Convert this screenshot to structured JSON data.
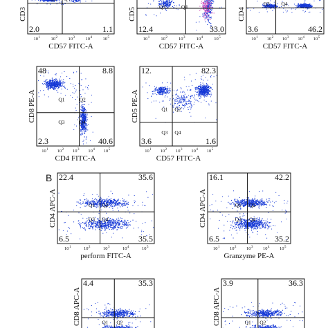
{
  "section_b_label": "B",
  "tick_labels": [
    "10",
    "10",
    "10",
    "10",
    "10"
  ],
  "tick_exponents": [
    "1",
    "2",
    "3",
    "4",
    "5"
  ],
  "panels": [
    {
      "id": "a1",
      "x": 40,
      "y": -8,
      "w": 125,
      "h": 57,
      "dot": "#1538d6",
      "ylabel": "CD3",
      "xlabel": "CD57 FITC-A",
      "tl": "",
      "tr": "",
      "bl": "2.0",
      "br": "1.1",
      "quads": [
        "Q3",
        "Q4"
      ],
      "qpos": [
        [
          0.26,
          0.16
        ],
        [
          0.42,
          0.16
        ]
      ],
      "dx": 0.4,
      "dy": 0.22,
      "clusters": [
        [
          0.25,
          0.12,
          0.12,
          0.05,
          260
        ],
        [
          0.55,
          0.14,
          0.08,
          0.05,
          40
        ]
      ]
    },
    {
      "id": "a2",
      "x": 198,
      "y": -8,
      "w": 128,
      "h": 57,
      "dot": "#1538d6",
      "ylabel": "CD5",
      "xlabel": "CD57 FITC-A",
      "tl": "",
      "tr": "",
      "bl": "12.4",
      "br": "33.0",
      "quads": [
        "Q3",
        "Q4"
      ],
      "qpos": [
        [
          0.25,
          0.36
        ],
        [
          0.5,
          0.36
        ]
      ],
      "dx": 0.55,
      "dy": 0.35,
      "clusters": [
        [
          0.32,
          0.22,
          0.1,
          0.16,
          160
        ],
        [
          0.8,
          0.35,
          0.06,
          0.38,
          220
        ]
      ],
      "pink": true
    },
    {
      "id": "a3",
      "x": 356,
      "y": -8,
      "w": 112,
      "h": 57,
      "dot": "#1538d6",
      "ylabel": "CD4",
      "xlabel": "CD57 FITC-A",
      "tl": "",
      "tr": "",
      "bl": "3.6",
      "br": "46.2",
      "quads": [
        "Q3",
        "Q4"
      ],
      "qpos": [
        [
          0.22,
          0.28
        ],
        [
          0.45,
          0.28
        ]
      ],
      "dx": 0.38,
      "dy": 0.34,
      "clusters": [
        [
          0.3,
          0.28,
          0.12,
          0.07,
          160
        ],
        [
          0.75,
          0.28,
          0.12,
          0.07,
          260
        ]
      ]
    },
    {
      "id": "a4",
      "x": 53,
      "y": 96,
      "w": 112,
      "h": 115,
      "dot": "#1538d6",
      "ylabel": "CD8 PE-A",
      "xlabel": "CD4 FITC-A",
      "tl": "48",
      "tr": "8.8",
      "bl": "2.3",
      "br": "40.6",
      "quads": [
        "Q1",
        "Q2",
        "Q3",
        "Q4"
      ],
      "qpos": [
        [
          0.28,
          0.44
        ],
        [
          0.55,
          0.44
        ],
        [
          0.28,
          0.72
        ],
        [
          0.55,
          0.72
        ]
      ],
      "dx": 0.55,
      "dy": 0.58,
      "clusters": [
        [
          0.22,
          0.22,
          0.14,
          0.07,
          420
        ],
        [
          0.6,
          0.68,
          0.05,
          0.22,
          380
        ]
      ]
    },
    {
      "id": "a5",
      "x": 202,
      "y": 96,
      "w": 112,
      "h": 115,
      "dot": "#1538d6",
      "ylabel": "CD5 PE-A",
      "xlabel": "CD57 FITC-A",
      "tl": "12.",
      "tr": "82.3",
      "bl": "3.6",
      "br": "1.6",
      "quads": [
        "Q1",
        "Q2",
        "Q3",
        "Q4"
      ],
      "qpos": [
        [
          0.28,
          0.56
        ],
        [
          0.45,
          0.56
        ],
        [
          0.28,
          0.85
        ],
        [
          0.45,
          0.85
        ]
      ],
      "dx": 0.42,
      "dy": 0.7,
      "clusters": [
        [
          0.28,
          0.3,
          0.12,
          0.06,
          180
        ],
        [
          0.82,
          0.3,
          0.1,
          0.08,
          420
        ],
        [
          0.55,
          0.42,
          0.2,
          0.15,
          140
        ]
      ]
    },
    {
      "id": "b1",
      "x": 83,
      "y": 250,
      "w": 140,
      "h": 102,
      "dot": "#1538d6",
      "ylabel": "CD4 APC-A",
      "xlabel": "perform FITC-A",
      "tl": "22.4",
      "tr": "35.6",
      "bl": "6.5",
      "br": "35.5",
      "quads": [
        "Q1",
        "Q2",
        "Q3",
        "Q4"
      ],
      "qpos": [
        [
          0.32,
          0.48
        ],
        [
          0.46,
          0.48
        ],
        [
          0.32,
          0.68
        ],
        [
          0.46,
          0.68
        ]
      ],
      "dx": 0.44,
      "dy": 0.55,
      "clusters": [
        [
          0.5,
          0.42,
          0.3,
          0.07,
          420
        ],
        [
          0.5,
          0.72,
          0.3,
          0.09,
          480
        ]
      ]
    },
    {
      "id": "b2",
      "x": 300,
      "y": 250,
      "w": 120,
      "h": 102,
      "dot": "#1538d6",
      "ylabel": "CD4 APC-A",
      "xlabel": "Granzyme PE-A",
      "tl": "16.1",
      "tr": "42.2",
      "bl": "6.5",
      "br": "35.2",
      "quads": [
        "Q1",
        "Q2",
        "Q3",
        "Q4"
      ],
      "qpos": [
        [
          0.33,
          0.48
        ],
        [
          0.5,
          0.48
        ],
        [
          0.33,
          0.68
        ],
        [
          0.5,
          0.68
        ]
      ],
      "dx": 0.48,
      "dy": 0.55,
      "clusters": [
        [
          0.52,
          0.42,
          0.26,
          0.07,
          400
        ],
        [
          0.52,
          0.72,
          0.26,
          0.09,
          460
        ]
      ]
    },
    {
      "id": "b3",
      "x": 118,
      "y": 403,
      "w": 105,
      "h": 80,
      "dot": "#1538d6",
      "ylabel": "CD8 APC-A",
      "xlabel": "",
      "tl": "4.4",
      "tr": "35.3",
      "bl": "",
      "br": "",
      "quads": [
        "Q1",
        "Q2"
      ],
      "qpos": [
        [
          0.28,
          0.82
        ],
        [
          0.48,
          0.82
        ]
      ],
      "dx": 0.45,
      "dy": 0.7,
      "clusters": [
        [
          0.5,
          0.62,
          0.28,
          0.08,
          380
        ],
        [
          0.5,
          0.88,
          0.28,
          0.06,
          200
        ]
      ]
    },
    {
      "id": "b4",
      "x": 320,
      "y": 403,
      "w": 120,
      "h": 80,
      "dot": "#1538d6",
      "ylabel": "CD8 APC-A",
      "xlabel": "",
      "tl": "3.9",
      "tr": "36.3",
      "bl": "",
      "br": "",
      "quads": [
        "Q1",
        "Q2"
      ],
      "qpos": [
        [
          0.28,
          0.82
        ],
        [
          0.46,
          0.82
        ]
      ],
      "dx": 0.44,
      "dy": 0.7,
      "clusters": [
        [
          0.52,
          0.62,
          0.26,
          0.08,
          380
        ],
        [
          0.52,
          0.88,
          0.26,
          0.06,
          200
        ]
      ]
    }
  ]
}
